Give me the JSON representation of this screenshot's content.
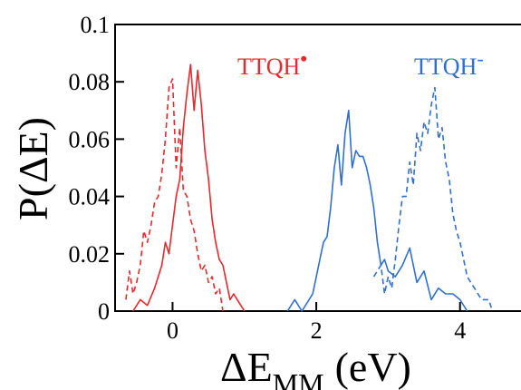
{
  "chart_data": {
    "type": "line",
    "title": "",
    "xlabel": {
      "main": "ΔE",
      "sub": "MM",
      "unit": "(eV)"
    },
    "ylabel": "P(ΔE)",
    "xlim": [
      -0.8,
      5.0
    ],
    "ylim": [
      0,
      0.1
    ],
    "xticks": [
      0,
      2,
      4
    ],
    "xtick_labels": [
      "0",
      "2",
      "4"
    ],
    "yticks": [
      0,
      0.02,
      0.04,
      0.06,
      0.08,
      0.1
    ],
    "ytick_labels": [
      "0",
      "0.02",
      "0.04",
      "0.06",
      "0.08",
      "0.1"
    ],
    "grid": false,
    "annotations": [
      {
        "text": "TTQH",
        "superscript": "•",
        "color": "#e8282b",
        "x": 0.8,
        "y": 0.085
      },
      {
        "text": "TTQH",
        "superscript": "-",
        "color": "#2f6fd3",
        "x": 3.7,
        "y": 0.085
      }
    ],
    "series": [
      {
        "color": "#e8282b",
        "dash": false,
        "x": [
          -0.55,
          -0.45,
          -0.35,
          -0.25,
          -0.2,
          -0.15,
          -0.1,
          -0.05,
          0.0,
          0.05,
          0.1,
          0.15,
          0.2,
          0.25,
          0.3,
          0.35,
          0.4,
          0.45,
          0.5,
          0.55,
          0.6,
          0.65,
          0.7,
          0.75,
          0.8,
          0.85,
          0.9,
          0.95,
          1.0
        ],
        "y": [
          0.0,
          0.004,
          0.002,
          0.008,
          0.012,
          0.016,
          0.024,
          0.02,
          0.03,
          0.04,
          0.046,
          0.064,
          0.076,
          0.086,
          0.07,
          0.084,
          0.072,
          0.056,
          0.046,
          0.032,
          0.024,
          0.018,
          0.016,
          0.01,
          0.004,
          0.006,
          0.004,
          0.002,
          0.0
        ]
      },
      {
        "color": "#e8282b",
        "dash": true,
        "x": [
          -0.65,
          -0.6,
          -0.55,
          -0.5,
          -0.45,
          -0.4,
          -0.35,
          -0.3,
          -0.25,
          -0.2,
          -0.15,
          -0.1,
          -0.05,
          0.0,
          0.05,
          0.1,
          0.15,
          0.2,
          0.25,
          0.3,
          0.35,
          0.4,
          0.45,
          0.5,
          0.55,
          0.6,
          0.65,
          0.7
        ],
        "y": [
          0.004,
          0.014,
          0.006,
          0.01,
          0.016,
          0.028,
          0.024,
          0.03,
          0.038,
          0.04,
          0.048,
          0.06,
          0.078,
          0.081,
          0.05,
          0.064,
          0.042,
          0.04,
          0.032,
          0.028,
          0.02,
          0.014,
          0.016,
          0.01,
          0.012,
          0.006,
          0.008,
          0.0
        ]
      },
      {
        "color": "#2f6fd3",
        "dash": false,
        "x": [
          1.6,
          1.7,
          1.8,
          1.9,
          1.95,
          2.0,
          2.05,
          2.1,
          2.15,
          2.2,
          2.25,
          2.3,
          2.35,
          2.4,
          2.45,
          2.5,
          2.55,
          2.6,
          2.65,
          2.7,
          2.75,
          2.8,
          2.85,
          2.9,
          2.95,
          3.0,
          3.1,
          3.2,
          3.3,
          3.4,
          3.5,
          3.6,
          3.7,
          3.8,
          3.9,
          4.0,
          4.1
        ],
        "y": [
          0.0,
          0.004,
          0.0,
          0.004,
          0.006,
          0.012,
          0.018,
          0.024,
          0.026,
          0.036,
          0.05,
          0.058,
          0.044,
          0.062,
          0.07,
          0.05,
          0.056,
          0.054,
          0.054,
          0.05,
          0.044,
          0.036,
          0.024,
          0.016,
          0.018,
          0.014,
          0.012,
          0.016,
          0.022,
          0.01,
          0.014,
          0.004,
          0.008,
          0.006,
          0.006,
          0.004,
          0.0
        ]
      },
      {
        "color": "#2f6fd3",
        "dash": true,
        "x": [
          2.8,
          2.9,
          2.95,
          3.0,
          3.05,
          3.1,
          3.15,
          3.2,
          3.25,
          3.3,
          3.35,
          3.4,
          3.45,
          3.5,
          3.55,
          3.6,
          3.65,
          3.7,
          3.75,
          3.8,
          3.85,
          3.9,
          3.95,
          4.0,
          4.05,
          4.1,
          4.2,
          4.3,
          4.4,
          4.45
        ],
        "y": [
          0.012,
          0.016,
          0.006,
          0.012,
          0.008,
          0.018,
          0.03,
          0.04,
          0.04,
          0.052,
          0.044,
          0.062,
          0.056,
          0.066,
          0.062,
          0.072,
          0.078,
          0.06,
          0.064,
          0.052,
          0.046,
          0.034,
          0.028,
          0.024,
          0.018,
          0.012,
          0.008,
          0.004,
          0.004,
          0.0
        ]
      }
    ]
  }
}
